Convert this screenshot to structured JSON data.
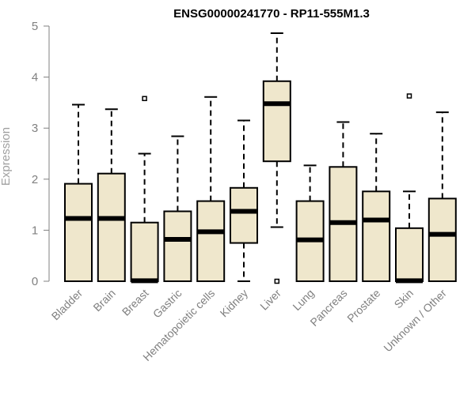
{
  "chart_data": {
    "type": "boxplot",
    "title": "ENSG00000241770 - RP11-555M1.3",
    "ylabel": "Expression",
    "ylim": [
      0,
      5
    ],
    "yticks": [
      "0",
      "1",
      "2",
      "3",
      "4",
      "5"
    ],
    "grid": false,
    "colors": {
      "box_fill": "#efe7cc",
      "box_stroke": "#000000",
      "axis": "#808080"
    },
    "categories": [
      "Bladder",
      "Brain",
      "Breast",
      "Gastric",
      "Hematopoietic cells",
      "Kidney",
      "Liver",
      "Lung",
      "Pancreas",
      "Prostate",
      "Skin",
      "Unknown / Other"
    ],
    "boxes": [
      {
        "whisker_low": 0,
        "q1": 0,
        "median": 1.23,
        "q3": 1.91,
        "whisker_high": 3.46,
        "outliers": []
      },
      {
        "whisker_low": 0,
        "q1": 0,
        "median": 1.23,
        "q3": 2.11,
        "whisker_high": 3.37,
        "outliers": []
      },
      {
        "whisker_low": 0,
        "q1": 0,
        "median": 0.01,
        "q3": 1.15,
        "whisker_high": 2.5,
        "outliers": [
          3.58
        ]
      },
      {
        "whisker_low": 0,
        "q1": 0,
        "median": 0.82,
        "q3": 1.37,
        "whisker_high": 2.84,
        "outliers": []
      },
      {
        "whisker_low": 0,
        "q1": 0,
        "median": 0.97,
        "q3": 1.57,
        "whisker_high": 3.61,
        "outliers": []
      },
      {
        "whisker_low": 0,
        "q1": 0.75,
        "median": 1.37,
        "q3": 1.83,
        "whisker_high": 3.15,
        "outliers": []
      },
      {
        "whisker_low": 1.06,
        "q1": 2.35,
        "median": 3.48,
        "q3": 3.92,
        "whisker_high": 4.86,
        "outliers": [
          0
        ]
      },
      {
        "whisker_low": 0,
        "q1": 0,
        "median": 0.81,
        "q3": 1.57,
        "whisker_high": 2.27,
        "outliers": []
      },
      {
        "whisker_low": 0,
        "q1": 0,
        "median": 1.15,
        "q3": 2.24,
        "whisker_high": 3.12,
        "outliers": []
      },
      {
        "whisker_low": 0,
        "q1": 0,
        "median": 1.2,
        "q3": 1.76,
        "whisker_high": 2.89,
        "outliers": []
      },
      {
        "whisker_low": 0,
        "q1": 0,
        "median": 0.01,
        "q3": 1.04,
        "whisker_high": 1.76,
        "outliers": [
          3.63
        ]
      },
      {
        "whisker_low": 0,
        "q1": 0,
        "median": 0.92,
        "q3": 1.62,
        "whisker_high": 3.31,
        "outliers": []
      }
    ]
  }
}
